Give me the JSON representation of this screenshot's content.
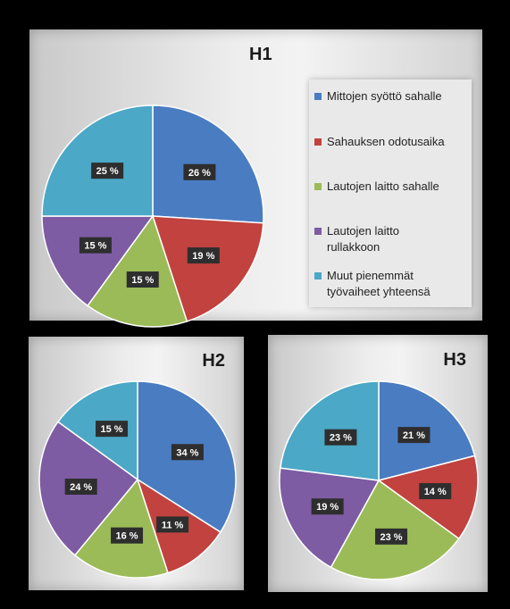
{
  "colors": {
    "blue": "#4a7cc1",
    "red": "#c1423f",
    "green": "#9bbb59",
    "purple": "#7d5ca3",
    "teal": "#4ba8c6",
    "label_bg": "#2e2e2e"
  },
  "legend": [
    {
      "text": "Mittojen syöttö sahalle",
      "color": "#4a7cc1"
    },
    {
      "text": "Sahauksen odotusaika",
      "color": "#c1423f"
    },
    {
      "text": "Lautojen laitto sahalle",
      "color": "#9bbb59"
    },
    {
      "text": "Lautojen laitto rullakkoon",
      "color": "#7d5ca3"
    },
    {
      "text": "Muut pienemmät työvaiheet yhteensä",
      "color": "#4ba8c6"
    }
  ],
  "chart_data": [
    {
      "type": "pie",
      "title": "H1",
      "categories": [
        "Mittojen syöttö sahalle",
        "Sahauksen odotusaika",
        "Lautojen laitto sahalle",
        "Lautojen laitto rullakkoon",
        "Muut pienemmät työvaiheet yhteensä"
      ],
      "values": [
        26,
        19,
        15,
        15,
        25
      ],
      "labels": [
        "26 %",
        "19 %",
        "15 %",
        "15 %",
        "25 %"
      ]
    },
    {
      "type": "pie",
      "title": "H2",
      "categories": [
        "Mittojen syöttö sahalle",
        "Sahauksen odotusaika",
        "Lautojen laitto sahalle",
        "Lautojen laitto rullakkoon",
        "Muut pienemmät työvaiheet yhteensä"
      ],
      "values": [
        34,
        11,
        16,
        24,
        15
      ],
      "labels": [
        "34 %",
        "11 %",
        "16 %",
        "24 %",
        "15 %"
      ]
    },
    {
      "type": "pie",
      "title": "H3",
      "categories": [
        "Mittojen syöttö sahalle",
        "Sahauksen odotusaika",
        "Lautojen laitto sahalle",
        "Lautojen laitto rullakkoon",
        "Muut pienemmät työvaiheet yhteensä"
      ],
      "values": [
        21,
        14,
        23,
        19,
        23
      ],
      "labels": [
        "21 %",
        "14 %",
        "23 %",
        "19 %",
        "23 %"
      ]
    }
  ]
}
